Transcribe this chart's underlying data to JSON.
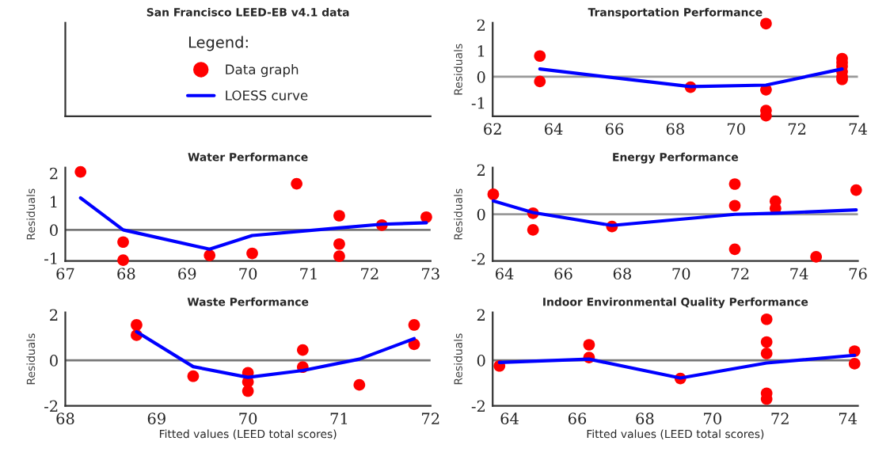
{
  "chart_data": [
    {
      "type": "other",
      "title": "San Francisco LEED-EB v4.1 data",
      "legend": "center",
      "legend_title": "Legend:",
      "series": [
        {
          "type": "scatter",
          "name": "Data graph",
          "color": "#ff0000"
        },
        {
          "type": "line",
          "name": "LOESS curve",
          "color": "#0000ff"
        }
      ]
    },
    {
      "type": "scatter",
      "title": "Transportation Performance",
      "ylabel": "Residuals",
      "xlim": [
        62,
        74
      ],
      "xticks": [
        62,
        64,
        66,
        68,
        70,
        72,
        74
      ],
      "ylim": [
        -1.52,
        2.08
      ],
      "yticks": [
        -1,
        0,
        1,
        2
      ],
      "ref_lines": [
        {
          "axis": "y",
          "value": 0,
          "color": "#999999"
        }
      ],
      "series": [
        {
          "type": "scatter",
          "marker": "circle",
          "color": "#ff0000",
          "x": [
            63.55,
            63.55,
            68.5,
            70.98,
            70.98,
            70.98,
            70.98,
            73.48,
            73.48,
            73.48,
            73.48,
            73.48,
            73.48
          ],
          "values": [
            0.8,
            -0.18,
            -0.4,
            2.05,
            -0.5,
            -1.3,
            -1.5,
            0.7,
            0.55,
            0.4,
            0.2,
            0.0,
            -0.1
          ]
        },
        {
          "type": "line",
          "color": "#0000ff",
          "x": [
            63.55,
            68.5,
            70.98,
            73.48
          ],
          "values": [
            0.3,
            -0.38,
            -0.32,
            0.3
          ]
        }
      ]
    },
    {
      "type": "scatter",
      "title": "Water Performance",
      "ylabel": "Residuals",
      "xlim": [
        67,
        73
      ],
      "xticks": [
        67,
        68,
        69,
        70,
        71,
        72,
        73
      ],
      "ylim": [
        -1.1,
        2.2
      ],
      "yticks": [
        -1,
        0,
        1,
        2
      ],
      "ref_lines": [
        {
          "axis": "y",
          "value": 0,
          "color": "#777777"
        }
      ],
      "series": [
        {
          "type": "scatter",
          "marker": "circle",
          "color": "#ff0000",
          "x": [
            67.25,
            67.95,
            67.95,
            69.37,
            70.07,
            70.8,
            71.5,
            71.5,
            71.5,
            72.2,
            72.93
          ],
          "values": [
            2.05,
            -0.43,
            -1.07,
            -0.9,
            -0.83,
            1.63,
            0.5,
            -0.5,
            -0.93,
            0.17,
            0.45
          ]
        },
        {
          "type": "line",
          "color": "#0000ff",
          "x": [
            67.25,
            67.95,
            69.37,
            70.07,
            71.5,
            72.2,
            72.93
          ],
          "values": [
            1.13,
            0.0,
            -0.68,
            -0.2,
            0.07,
            0.2,
            0.25
          ]
        }
      ]
    },
    {
      "type": "scatter",
      "title": "Energy Performance",
      "ylabel": "Residuals",
      "xlim": [
        63.6,
        76
      ],
      "xticks": [
        64,
        66,
        68,
        70,
        72,
        74,
        76
      ],
      "ylim": [
        -2.1,
        2.1
      ],
      "yticks": [
        -2,
        0,
        2
      ],
      "ref_lines": [
        {
          "axis": "y",
          "value": 0,
          "color": "#999999"
        }
      ],
      "series": [
        {
          "type": "scatter",
          "marker": "circle",
          "color": "#ff0000",
          "x": [
            63.62,
            64.97,
            64.97,
            67.65,
            71.82,
            71.82,
            71.82,
            73.2,
            73.2,
            74.58,
            75.94
          ],
          "values": [
            0.9,
            0.05,
            -0.7,
            -0.55,
            1.36,
            0.39,
            -1.57,
            0.59,
            0.27,
            -1.91,
            1.09
          ]
        },
        {
          "type": "line",
          "color": "#0000ff",
          "x": [
            63.62,
            64.97,
            67.65,
            71.82,
            73.2,
            75.94
          ],
          "values": [
            0.6,
            0.08,
            -0.5,
            0.0,
            0.05,
            0.2
          ]
        }
      ]
    },
    {
      "type": "scatter",
      "title": "Waste Performance",
      "ylabel": "Residuals",
      "xlabel": "Fitted values (LEED total scores)",
      "xlim": [
        68,
        72
      ],
      "xticks": [
        68,
        69,
        70,
        71,
        72
      ],
      "ylim": [
        -2,
        2.1
      ],
      "yticks": [
        -2,
        0,
        2
      ],
      "ref_lines": [
        {
          "axis": "y",
          "value": 0,
          "color": "#777777"
        }
      ],
      "series": [
        {
          "type": "scatter",
          "marker": "circle",
          "color": "#ff0000",
          "x": [
            68.78,
            68.78,
            69.4,
            70,
            70,
            70,
            70.6,
            70.6,
            71.22,
            71.82,
            71.82
          ],
          "values": [
            1.55,
            1.1,
            -0.7,
            -0.55,
            -0.95,
            -1.35,
            0.45,
            -0.3,
            -1.08,
            1.55,
            0.7
          ]
        },
        {
          "type": "line",
          "color": "#0000ff",
          "x": [
            68.78,
            69.4,
            70,
            70.6,
            71.22,
            71.82
          ],
          "values": [
            1.25,
            -0.28,
            -0.75,
            -0.45,
            0.05,
            0.95
          ]
        }
      ]
    },
    {
      "type": "scatter",
      "title": "Indoor Environmental Quality Performance",
      "ylabel": "Residuals",
      "xlabel": "Fitted values (LEED total scores)",
      "xlim": [
        63.5,
        74.3
      ],
      "xticks": [
        64,
        66,
        68,
        70,
        72,
        74
      ],
      "ylim": [
        -2,
        2.1
      ],
      "yticks": [
        -2,
        0,
        2
      ],
      "ref_lines": [
        {
          "axis": "y",
          "value": 0,
          "color": "#777777"
        }
      ],
      "series": [
        {
          "type": "scatter",
          "marker": "circle",
          "color": "#ff0000",
          "x": [
            63.7,
            66.35,
            66.35,
            69.05,
            71.6,
            71.6,
            71.6,
            71.6,
            71.6,
            74.2,
            74.2
          ],
          "values": [
            -0.25,
            0.68,
            0.12,
            -0.8,
            1.8,
            0.8,
            0.3,
            -1.45,
            -1.7,
            0.4,
            -0.15
          ]
        },
        {
          "type": "line",
          "color": "#0000ff",
          "x": [
            63.7,
            66.35,
            69.05,
            71.6,
            74.2
          ],
          "values": [
            -0.1,
            0.05,
            -0.78,
            -0.12,
            0.22
          ]
        }
      ]
    }
  ]
}
